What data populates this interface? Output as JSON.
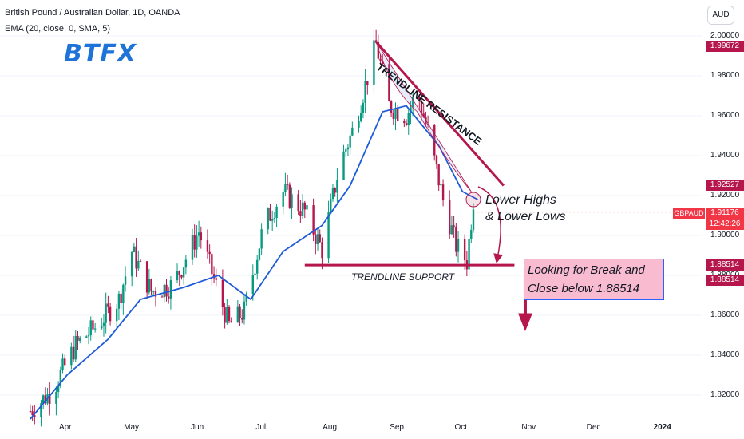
{
  "header": {
    "title": "British Pound / Australian Dollar, 1D, OANDA",
    "indicator": "EMA (20, close, 0, SMA, 5)"
  },
  "logo_text": "BTFX",
  "currency_button": "AUD",
  "price_tags": {
    "peak": "1.99672",
    "resistance": "1.92527",
    "last": "1.91176",
    "countdown": "12:42:26",
    "support_a": "1.88514",
    "support_b": "1.88514"
  },
  "symbol": "GBPAUD",
  "annotations": {
    "resistance_label": "TRENDLINE RESISTANCE",
    "support_label": "TRENDLINE SUPPORT",
    "lower_highs_1": "Lower Highs",
    "lower_highs_2": "& Lower Lows",
    "box_line1": "Looking for Break and",
    "box_line2": "Close below 1.88514"
  },
  "colors": {
    "up": "#089981",
    "down": "#b5174c",
    "ema": "#1e5bd8",
    "trendline": "#b5174c",
    "box_fill": "#f8bbd0",
    "box_border": "#2962ff"
  },
  "chart_data": {
    "type": "candlestick",
    "title": "British Pound / Australian Dollar, 1D, OANDA",
    "ylim": [
      1.81,
      2.0
    ],
    "y_ticks": [
      "1.82000",
      "1.84000",
      "1.86000",
      "1.88000",
      "1.90000",
      "1.92000",
      "1.94000",
      "1.96000",
      "1.98000",
      "2.00000"
    ],
    "x_ticks": [
      "Apr",
      "May",
      "Jun",
      "Jul",
      "Aug",
      "Sep",
      "Oct",
      "Nov",
      "Dec",
      "2024"
    ],
    "close_path": [
      {
        "date": "2023-03-15",
        "close": 1.812
      },
      {
        "date": "2023-03-25",
        "close": 1.822
      },
      {
        "date": "2023-04-05",
        "close": 1.845
      },
      {
        "date": "2023-04-15",
        "close": 1.855
      },
      {
        "date": "2023-04-25",
        "close": 1.868
      },
      {
        "date": "2023-05-01",
        "close": 1.892
      },
      {
        "date": "2023-05-10",
        "close": 1.872
      },
      {
        "date": "2023-05-20",
        "close": 1.875
      },
      {
        "date": "2023-06-01",
        "close": 1.902
      },
      {
        "date": "2023-06-08",
        "close": 1.878
      },
      {
        "date": "2023-06-15",
        "close": 1.855
      },
      {
        "date": "2023-06-22",
        "close": 1.862
      },
      {
        "date": "2023-07-01",
        "close": 1.905
      },
      {
        "date": "2023-07-10",
        "close": 1.922
      },
      {
        "date": "2023-07-20",
        "close": 1.912
      },
      {
        "date": "2023-07-28",
        "close": 1.893
      },
      {
        "date": "2023-08-05",
        "close": 1.935
      },
      {
        "date": "2023-08-12",
        "close": 1.955
      },
      {
        "date": "2023-08-22",
        "close": 1.996
      },
      {
        "date": "2023-08-28",
        "close": 1.965
      },
      {
        "date": "2023-09-05",
        "close": 1.96
      },
      {
        "date": "2023-09-10",
        "close": 1.972
      },
      {
        "date": "2023-09-15",
        "close": 1.952
      },
      {
        "date": "2023-09-22",
        "close": 1.918
      },
      {
        "date": "2023-09-28",
        "close": 1.895
      },
      {
        "date": "2023-10-03",
        "close": 1.887
      },
      {
        "date": "2023-10-06",
        "close": 1.918
      },
      {
        "date": "2023-10-08",
        "close": 1.912
      }
    ],
    "ema_path": [
      {
        "date": "2023-03-15",
        "value": 1.808
      },
      {
        "date": "2023-04-01",
        "value": 1.83
      },
      {
        "date": "2023-04-20",
        "value": 1.848
      },
      {
        "date": "2023-05-05",
        "value": 1.868
      },
      {
        "date": "2023-05-25",
        "value": 1.874
      },
      {
        "date": "2023-06-10",
        "value": 1.88
      },
      {
        "date": "2023-06-25",
        "value": 1.868
      },
      {
        "date": "2023-07-10",
        "value": 1.892
      },
      {
        "date": "2023-07-28",
        "value": 1.905
      },
      {
        "date": "2023-08-10",
        "value": 1.925
      },
      {
        "date": "2023-08-25",
        "value": 1.962
      },
      {
        "date": "2023-09-05",
        "value": 1.965
      },
      {
        "date": "2023-09-20",
        "value": 1.945
      },
      {
        "date": "2023-10-01",
        "value": 1.922
      },
      {
        "date": "2023-10-08",
        "value": 1.918
      }
    ],
    "resistance_line": [
      {
        "date": "2023-08-22",
        "value": 1.997
      },
      {
        "date": "2023-10-20",
        "value": 1.925
      }
    ],
    "support_level": 1.88514,
    "support_range": [
      "2023-07-20",
      "2023-10-25"
    ]
  }
}
